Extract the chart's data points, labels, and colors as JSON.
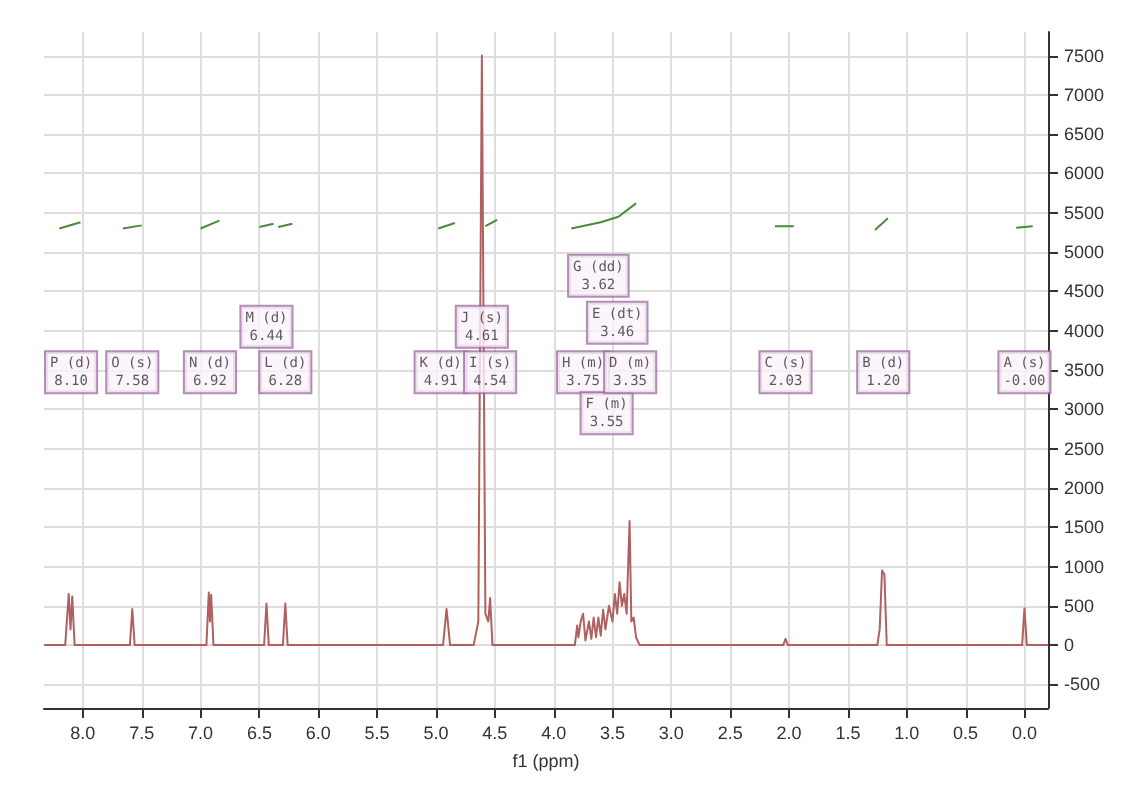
{
  "chart_data": {
    "type": "line",
    "xlabel": "f1 (ppm)",
    "xlim": [
      8.33,
      -0.2
    ],
    "ylim": [
      -800,
      7800
    ],
    "xticks": [
      {
        "value": 8,
        "label": "8.0"
      },
      {
        "value": 7.5,
        "label": "7.5"
      },
      {
        "value": 7,
        "label": "7.0"
      },
      {
        "value": 6.5,
        "label": "6.5"
      },
      {
        "value": 6,
        "label": "6.0"
      },
      {
        "value": 5.5,
        "label": "5.5"
      },
      {
        "value": 5,
        "label": "5.0"
      },
      {
        "value": 4.5,
        "label": "4.5"
      },
      {
        "value": 4,
        "label": "4.0"
      },
      {
        "value": 3.5,
        "label": "3.5"
      },
      {
        "value": 3,
        "label": "3.0"
      },
      {
        "value": 2.5,
        "label": "2.5"
      },
      {
        "value": 2,
        "label": "2.0"
      },
      {
        "value": 1.5,
        "label": "1.5"
      },
      {
        "value": 1,
        "label": "1.0"
      },
      {
        "value": 0.5,
        "label": "0.5"
      },
      {
        "value": 0,
        "label": "0.0"
      }
    ],
    "yticks": [
      -500,
      0,
      500,
      1000,
      1500,
      2000,
      2500,
      3000,
      3500,
      4000,
      4500,
      5000,
      5500,
      6000,
      6500,
      7000,
      7500
    ],
    "grid": true,
    "marker": "none",
    "series": [
      {
        "color": "#b06060",
        "x": [
          8.33,
          8.15,
          8.12,
          8.105,
          8.09,
          8.07,
          7.6,
          7.58,
          7.56,
          6.95,
          6.93,
          6.92,
          6.91,
          6.89,
          6.46,
          6.44,
          6.42,
          6.3,
          6.28,
          6.26,
          4.94,
          4.91,
          4.88,
          4.68,
          4.64,
          4.61,
          4.58,
          4.555,
          4.54,
          4.52,
          3.82,
          3.8,
          3.79,
          3.77,
          3.75,
          3.73,
          3.7,
          3.68,
          3.66,
          3.64,
          3.62,
          3.6,
          3.58,
          3.56,
          3.53,
          3.5,
          3.48,
          3.46,
          3.44,
          3.42,
          3.4,
          3.38,
          3.355,
          3.34,
          3.32,
          3.3,
          3.27,
          2.05,
          2.03,
          2.01,
          1.25,
          1.23,
          1.21,
          1.19,
          1.17,
          0.02,
          0,
          -0.02,
          -0.2
        ],
        "values": [
          0,
          0,
          650,
          200,
          620,
          0,
          0,
          460,
          0,
          0,
          670,
          300,
          640,
          0,
          0,
          530,
          0,
          0,
          530,
          0,
          0,
          460,
          0,
          0,
          300,
          7500,
          400,
          300,
          600,
          0,
          0,
          250,
          100,
          300,
          400,
          60,
          300,
          80,
          350,
          100,
          350,
          120,
          450,
          200,
          500,
          300,
          650,
          400,
          800,
          500,
          650,
          400,
          1580,
          300,
          350,
          100,
          0,
          0,
          80,
          0,
          0,
          200,
          950,
          900,
          0,
          0,
          470,
          0,
          0
        ]
      },
      {
        "color": "#4a8a3a",
        "x": [
          8.2,
          8.02,
          7.8,
          7.66,
          7.5,
          7.2,
          7.0,
          6.84,
          6.6,
          6.5,
          6.38,
          6.36,
          6.34,
          6.22,
          5.5,
          4.98,
          4.84,
          4.7,
          4.58,
          4.48,
          4.2,
          3.85,
          3.6,
          3.45,
          3.3,
          2.6,
          2.12,
          1.96,
          1.6,
          1.27,
          1.16,
          0.6,
          0.07,
          -0.07
        ],
        "values": [
          5300,
          5380,
          null,
          5300,
          5340,
          null,
          5300,
          5400,
          null,
          5320,
          5360,
          null,
          5320,
          5360,
          null,
          5300,
          5370,
          null,
          5330,
          5410,
          null,
          5300,
          5380,
          5450,
          5620,
          null,
          5330,
          5330,
          null,
          5280,
          5430,
          null,
          5310,
          5330
        ]
      }
    ],
    "annotations": [
      {
        "text": "P (d)\n8.10",
        "x": 8.1,
        "y": 3470
      },
      {
        "text": "O (s)\n7.58",
        "x": 7.58,
        "y": 3470
      },
      {
        "text": "N (d)\n6.92",
        "x": 6.92,
        "y": 3470
      },
      {
        "text": "M (d)\n6.44",
        "x": 6.44,
        "y": 4050
      },
      {
        "text": "L (d)\n6.28",
        "x": 6.28,
        "y": 3470
      },
      {
        "text": "K (d)\n4.91",
        "x": 4.96,
        "y": 3470
      },
      {
        "text": "J (s)\n4.61",
        "x": 4.61,
        "y": 4050
      },
      {
        "text": "I (s)\n4.54",
        "x": 4.54,
        "y": 3470
      },
      {
        "text": "H (m)\n3.75",
        "x": 3.75,
        "y": 3470
      },
      {
        "text": "G (dd)\n3.62",
        "x": 3.62,
        "y": 4700
      },
      {
        "text": "F (m)\n3.55",
        "x": 3.55,
        "y": 2950
      },
      {
        "text": "E (dt)\n3.46",
        "x": 3.46,
        "y": 4100
      },
      {
        "text": "D (m)\n3.35",
        "x": 3.35,
        "y": 3470
      },
      {
        "text": "C (s)\n2.03",
        "x": 2.03,
        "y": 3470
      },
      {
        "text": "B (d)\n1.20",
        "x": 1.2,
        "y": 3470
      },
      {
        "text": "A (s)\n-0.00",
        "x": 0,
        "y": 3470
      }
    ]
  }
}
